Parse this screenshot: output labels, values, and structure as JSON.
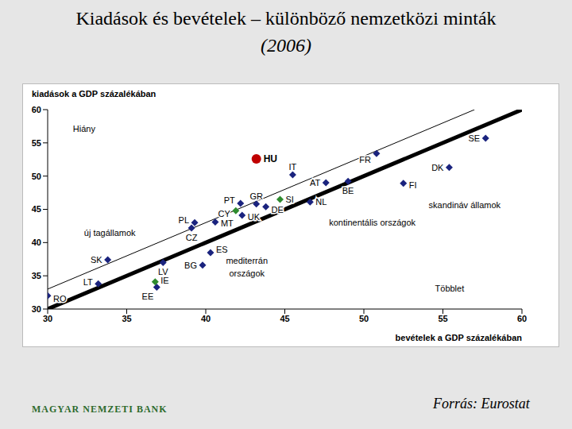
{
  "chart_data": {
    "type": "scatter",
    "title": "Kiadások és bevételek – különböző nemzetközi minták",
    "subtitle": "(2006)",
    "x_label": "bevételek a GDP százalékában",
    "y_label": "kiadások a GDP százalékában",
    "source": "Forrás: Eurostat",
    "logo": "MAGYAR NEMZETI BANK",
    "xlim": [
      30,
      60
    ],
    "ylim": [
      30,
      60
    ],
    "xticks": [
      30,
      35,
      40,
      45,
      50,
      55,
      60
    ],
    "yticks": [
      30,
      35,
      40,
      45,
      50,
      55,
      60
    ],
    "grid": false,
    "points": [
      {
        "label": "RO",
        "x": 30.0,
        "y": 32.0,
        "color": "#1a237e",
        "marker": "diamond"
      },
      {
        "label": "LT",
        "x": 33.2,
        "y": 33.8,
        "color": "#1a237e",
        "marker": "diamond"
      },
      {
        "label": "SK",
        "x": 33.8,
        "y": 37.4,
        "color": "#1a237e",
        "marker": "diamond"
      },
      {
        "label": "LV",
        "x": 37.3,
        "y": 37.0,
        "color": "#1a237e",
        "marker": "diamond"
      },
      {
        "label": "EE",
        "x": 36.9,
        "y": 33.3,
        "color": "#1a237e",
        "marker": "diamond"
      },
      {
        "label": "IE",
        "x": 36.8,
        "y": 34.1,
        "color": "#2e8b2e",
        "marker": "diamond"
      },
      {
        "label": "PL",
        "x": 39.3,
        "y": 43.0,
        "color": "#1a237e",
        "marker": "diamond"
      },
      {
        "label": "CZ",
        "x": 39.1,
        "y": 42.2,
        "color": "#1a237e",
        "marker": "diamond"
      },
      {
        "label": "BG",
        "x": 39.8,
        "y": 36.6,
        "color": "#1a237e",
        "marker": "diamond"
      },
      {
        "label": "ES",
        "x": 40.3,
        "y": 38.5,
        "color": "#1a237e",
        "marker": "diamond"
      },
      {
        "label": "MT",
        "x": 40.6,
        "y": 43.1,
        "color": "#1a237e",
        "marker": "diamond"
      },
      {
        "label": "CY",
        "x": 41.9,
        "y": 44.8,
        "color": "#2e8b2e",
        "marker": "diamond"
      },
      {
        "label": "UK",
        "x": 42.3,
        "y": 44.1,
        "color": "#1a237e",
        "marker": "diamond"
      },
      {
        "label": "PT",
        "x": 42.2,
        "y": 45.9,
        "color": "#1a237e",
        "marker": "diamond"
      },
      {
        "label": "GR",
        "x": 43.2,
        "y": 45.8,
        "color": "#1a237e",
        "marker": "diamond"
      },
      {
        "label": "DE",
        "x": 43.8,
        "y": 45.4,
        "color": "#1a237e",
        "marker": "diamond"
      },
      {
        "label": "SI",
        "x": 44.7,
        "y": 46.5,
        "color": "#2e8b2e",
        "marker": "diamond"
      },
      {
        "label": "HU",
        "x": 43.2,
        "y": 52.6,
        "color": "#c00000",
        "marker": "circle"
      },
      {
        "label": "IT",
        "x": 45.5,
        "y": 50.2,
        "color": "#1a237e",
        "marker": "diamond"
      },
      {
        "label": "NL",
        "x": 46.6,
        "y": 46.1,
        "color": "#1a237e",
        "marker": "diamond"
      },
      {
        "label": "AT",
        "x": 47.6,
        "y": 49.0,
        "color": "#1a237e",
        "marker": "diamond"
      },
      {
        "label": "BE",
        "x": 49.0,
        "y": 49.2,
        "color": "#1a237e",
        "marker": "diamond"
      },
      {
        "label": "FR",
        "x": 50.8,
        "y": 53.4,
        "color": "#1a237e",
        "marker": "diamond"
      },
      {
        "label": "FI",
        "x": 52.5,
        "y": 48.9,
        "color": "#1a237e",
        "marker": "diamond"
      },
      {
        "label": "DK",
        "x": 55.4,
        "y": 51.3,
        "color": "#1a237e",
        "marker": "diamond"
      },
      {
        "label": "SE",
        "x": 57.7,
        "y": 55.7,
        "color": "#1a237e",
        "marker": "diamond"
      }
    ],
    "lines": [
      {
        "x": [
          30,
          60
        ],
        "y": [
          30,
          60
        ],
        "color": "#000000",
        "line_style": "solid"
      },
      {
        "x": [
          30,
          57
        ],
        "y": [
          33,
          60
        ],
        "color": "#000000",
        "line_style": "solid"
      }
    ],
    "annotations": [
      {
        "text": "Hiány",
        "x": 31.6,
        "y": 57.1
      },
      {
        "text": "új tagállamok",
        "x": 32.3,
        "y": 41.5
      },
      {
        "text": "mediterrán országok",
        "x": 42.6,
        "y": 36.3
      },
      {
        "text": "kontinentális országok",
        "x": 47.8,
        "y": 43.0
      },
      {
        "text": "skandináv államok",
        "x": 54.1,
        "y": 45.6
      },
      {
        "text": "Többlet",
        "x": 54.5,
        "y": 33.1
      }
    ]
  }
}
